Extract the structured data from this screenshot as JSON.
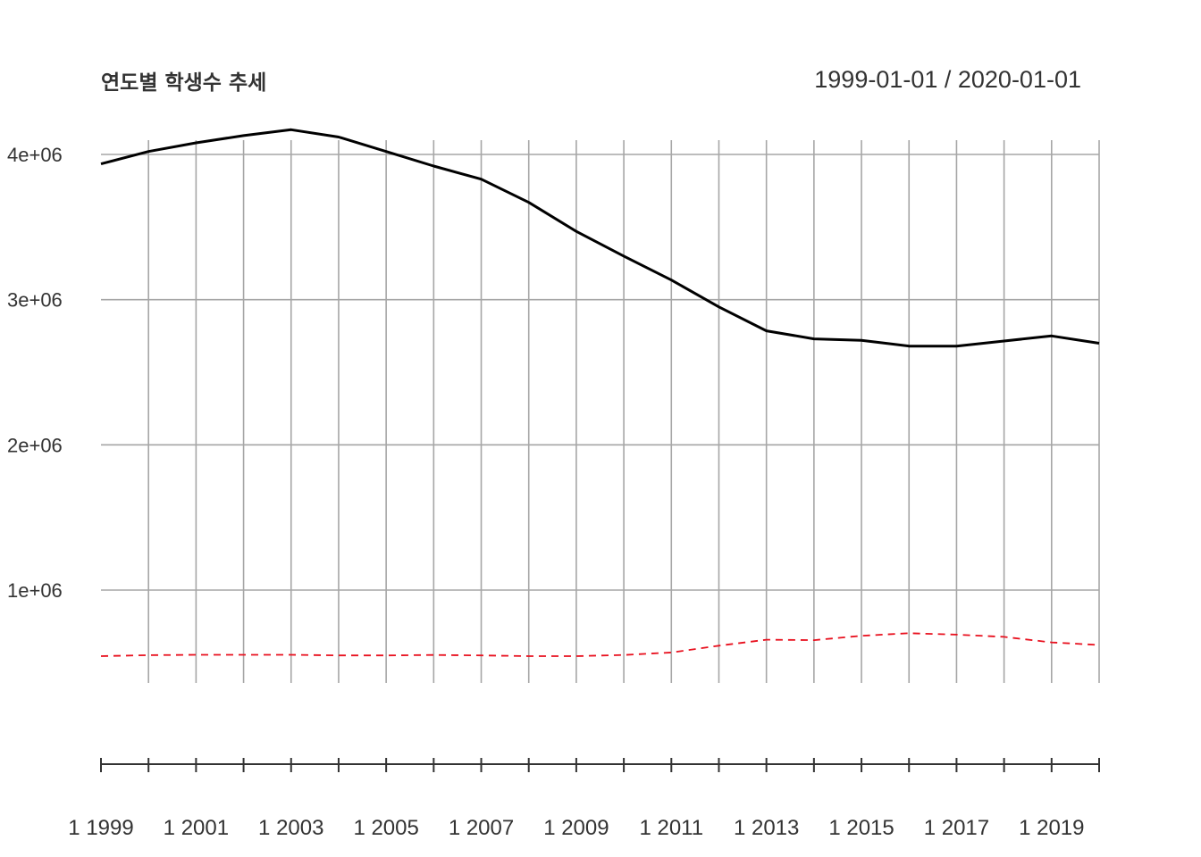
{
  "chart_data": {
    "type": "line",
    "title": "연도별 학생수 추세",
    "date_range_label": "1999-01-01 / 2020-01-01",
    "x": [
      "1999-01-01",
      "2000-01-01",
      "2001-01-01",
      "2002-01-01",
      "2003-01-01",
      "2004-01-01",
      "2005-01-01",
      "2006-01-01",
      "2007-01-01",
      "2008-01-01",
      "2009-01-01",
      "2010-01-01",
      "2011-01-01",
      "2012-01-01",
      "2013-01-01",
      "2014-01-01",
      "2015-01-01",
      "2016-01-01",
      "2017-01-01",
      "2018-01-01",
      "2019-01-01",
      "2020-01-01"
    ],
    "series": [
      {
        "values": [
          3935000,
          4020000,
          4080000,
          4130000,
          4170000,
          4120000,
          4020000,
          3920000,
          3830000,
          3670000,
          3470000,
          3300000,
          3135000,
          2950000,
          2785000,
          2730000,
          2720000,
          2680000,
          2680000,
          2715000,
          2750000,
          2700000
        ],
        "color": "#000000",
        "style": "solid"
      },
      {
        "values": [
          545000,
          552000,
          554000,
          554000,
          554000,
          550000,
          550000,
          553000,
          550000,
          545000,
          545000,
          553000,
          570000,
          617000,
          658000,
          655000,
          685000,
          703000,
          693000,
          678000,
          640000,
          622000
        ],
        "color": "#e8101e",
        "style": "dashed"
      }
    ],
    "yticks": [
      {
        "value": 1000000,
        "label": "1e+06"
      },
      {
        "value": 2000000,
        "label": "2e+06"
      },
      {
        "value": 3000000,
        "label": "3e+06"
      },
      {
        "value": 4000000,
        "label": "4e+06"
      }
    ],
    "xtick_labels": [
      "1 1999",
      "1 2001",
      "1 2003",
      "1 2005",
      "1 2007",
      "1 2009",
      "1 2011",
      "1 2013",
      "1 2015",
      "1 2017",
      "1 2019"
    ],
    "grid": true,
    "grid_color": "#a6a6a6"
  }
}
